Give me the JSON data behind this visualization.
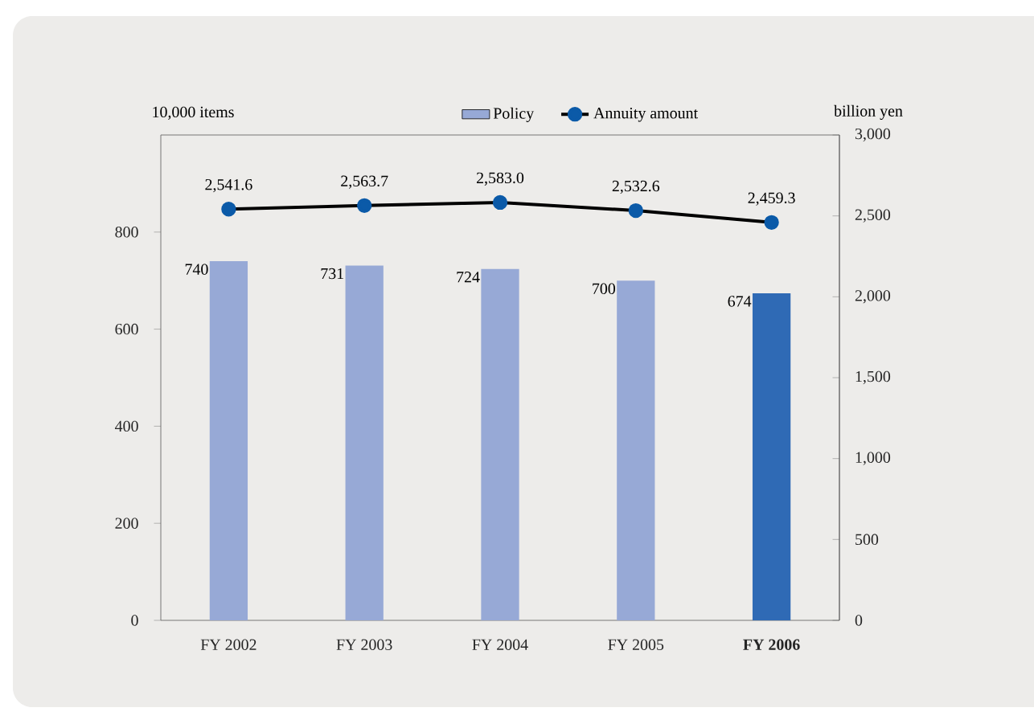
{
  "chart_data": {
    "type": "bar",
    "categories": [
      "FY 2002",
      "FY 2003",
      "FY 2004",
      "FY 2005",
      "**FY 2006**"
    ],
    "ylabel": "10,000 items",
    "y2label": "billion yen",
    "ylim": [
      0,
      1000
    ],
    "yticks": [
      0,
      200,
      400,
      600,
      800
    ],
    "y2lim": [
      0,
      3000
    ],
    "y2ticks": [
      0,
      500,
      {
        "value": 1000,
        "label": "1,000"
      },
      {
        "value": 1500,
        "label": "1,500"
      },
      {
        "value": 2000,
        "label": "2,000"
      },
      {
        "value": 2500,
        "label": "2,500"
      },
      {
        "value": 3000,
        "label": "3,000"
      }
    ],
    "series": [
      {
        "name": "Policy",
        "colors": [
          "#97a9d6",
          "#97a9d6",
          "#97a9d6",
          "#97a9d6",
          "#2f6ab5"
        ],
        "values": [
          740,
          731,
          724,
          700,
          674
        ],
        "value_labels": [
          "740",
          "731",
          "724",
          "700",
          "674"
        ]
      },
      {
        "name": "Annuity amount",
        "type": "line",
        "axis": "y2",
        "color": "#0b5aa8",
        "values": [
          2541.6,
          2563.7,
          2583.0,
          2532.6,
          2459.3
        ],
        "value_labels": [
          "2,541.6",
          "2,563.7",
          "2,583.0",
          "2,532.6",
          "2,459.3"
        ]
      }
    ],
    "grid": false,
    "legend": "top",
    "marker": "circle",
    "line_style": "solid"
  }
}
